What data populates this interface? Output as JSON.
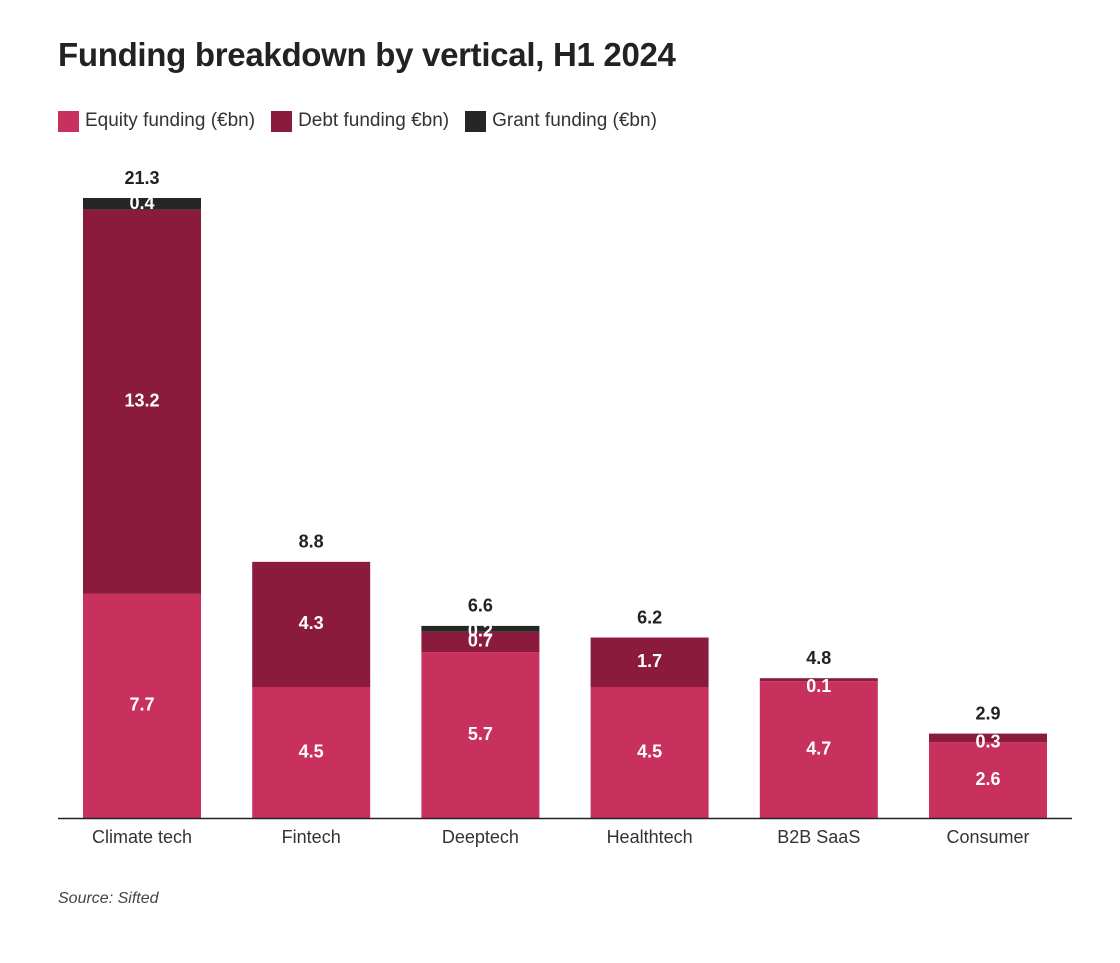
{
  "chart_data": {
    "type": "bar",
    "stacked": true,
    "title": "Funding breakdown by vertical, H1 2024",
    "categories": [
      "Climate tech",
      "Fintech",
      "Deeptech",
      "Healthtech",
      "B2B SaaS",
      "Consumer"
    ],
    "series": [
      {
        "name": "Equity funding (€bn)",
        "color": "#c8305e",
        "values": [
          7.7,
          4.5,
          5.7,
          4.5,
          4.7,
          2.6
        ]
      },
      {
        "name": "Debt funding €bn)",
        "color": "#8b1b3d",
        "values": [
          13.2,
          4.3,
          0.7,
          1.7,
          0.1,
          0.3
        ]
      },
      {
        "name": "Grant funding (€bn)",
        "color": "#262626",
        "values": [
          0.4,
          null,
          0.2,
          null,
          null,
          null
        ]
      }
    ],
    "totals": [
      21.3,
      8.8,
      6.6,
      6.2,
      4.8,
      2.9
    ],
    "ylim": [
      0,
      21.3
    ],
    "legend_position": "top-left",
    "grid": false
  },
  "source": "Source: Sifted"
}
